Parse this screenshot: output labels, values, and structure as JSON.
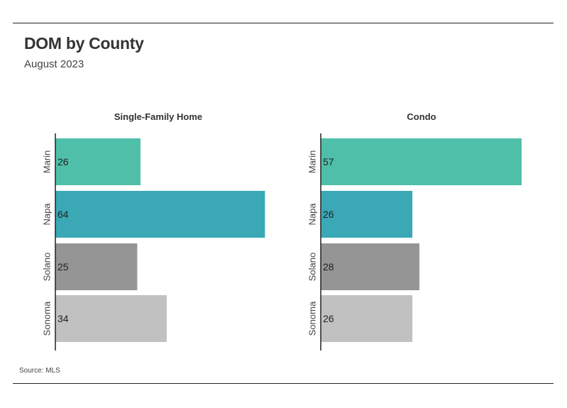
{
  "header": {
    "title": "DOM by County",
    "subtitle": "August 2023"
  },
  "footer": {
    "source": "Source: MLS"
  },
  "colors": {
    "Marin": "#4fbfaa",
    "Napa": "#3aa8b5",
    "Solano": "#959595",
    "Sonoma": "#c1c1c1",
    "axis": "#222222"
  },
  "chart_data": [
    {
      "type": "bar",
      "orientation": "horizontal",
      "title": "Single-Family Home",
      "categories": [
        "Marin",
        "Napa",
        "Solano",
        "Sonoma"
      ],
      "values": [
        26,
        64,
        25,
        34
      ],
      "xlim": [
        0,
        65
      ],
      "grid": false
    },
    {
      "type": "bar",
      "orientation": "horizontal",
      "title": "Condo",
      "categories": [
        "Marin",
        "Napa",
        "Solano",
        "Sonoma"
      ],
      "values": [
        57,
        26,
        28,
        26
      ],
      "xlim": [
        0,
        58
      ],
      "grid": false
    }
  ]
}
